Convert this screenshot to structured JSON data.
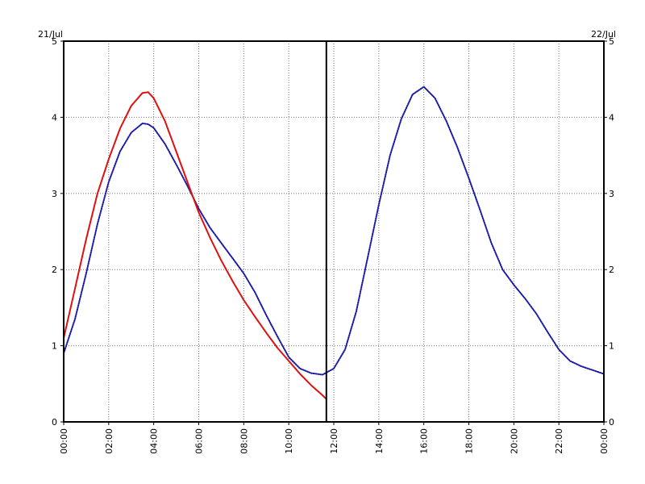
{
  "chart_data": {
    "type": "line",
    "title": "",
    "xlabel": "",
    "ylabel": "",
    "date_labels": {
      "left": "21/Jul",
      "right": "22/Jul"
    },
    "x_unit": "hours",
    "xlim": [
      0,
      24
    ],
    "ylim": [
      0,
      5
    ],
    "x_ticks": [
      0,
      2,
      4,
      6,
      8,
      10,
      12,
      14,
      16,
      18,
      20,
      22,
      24
    ],
    "x_tick_labels": [
      "00:00",
      "02:00",
      "04:00",
      "06:00",
      "08:00",
      "10:00",
      "12:00",
      "14:00",
      "16:00",
      "18:00",
      "20:00",
      "22:00",
      "00:00"
    ],
    "y_ticks": [
      0,
      1,
      2,
      3,
      4,
      5
    ],
    "y_tick_labels": [
      "0",
      "1",
      "2",
      "3",
      "4",
      "5"
    ],
    "grid": true,
    "current_time_marker": 11.67,
    "series": [
      {
        "color": "#1a1aa6",
        "style": "dotted",
        "x": [
          0.0,
          0.5,
          1.0,
          1.5,
          2.0,
          2.5,
          3.0,
          3.5,
          3.75,
          4.0,
          4.5,
          5.0,
          5.5,
          6.0,
          6.5,
          7.0,
          7.5,
          8.0,
          8.5,
          9.0,
          9.5,
          10.0,
          10.5,
          11.0,
          11.5,
          12.0,
          12.5,
          13.0,
          13.5,
          14.0,
          14.5,
          15.0,
          15.5,
          16.0,
          16.5,
          17.0,
          17.5,
          18.0,
          18.5,
          19.0,
          19.5,
          20.0,
          20.5,
          21.0,
          21.5,
          22.0,
          22.5,
          23.0,
          23.5,
          24.0
        ],
        "y": [
          0.9,
          1.35,
          1.95,
          2.6,
          3.15,
          3.55,
          3.8,
          3.92,
          3.91,
          3.86,
          3.65,
          3.38,
          3.1,
          2.8,
          2.55,
          2.35,
          2.15,
          1.95,
          1.7,
          1.4,
          1.12,
          0.85,
          0.7,
          0.64,
          0.62,
          0.7,
          0.95,
          1.45,
          2.15,
          2.85,
          3.5,
          3.98,
          4.3,
          4.4,
          4.25,
          3.95,
          3.6,
          3.2,
          2.78,
          2.35,
          2.0,
          1.8,
          1.62,
          1.42,
          1.18,
          0.95,
          0.8,
          0.73,
          0.68,
          0.63
        ]
      },
      {
        "color": "#e01010",
        "style": "solid",
        "x": [
          0.0,
          0.5,
          1.0,
          1.5,
          2.0,
          2.5,
          3.0,
          3.5,
          3.75,
          4.0,
          4.5,
          5.0,
          5.5,
          6.0,
          6.5,
          7.0,
          7.5,
          8.0,
          8.5,
          9.0,
          9.5,
          10.0,
          10.5,
          11.0,
          11.5,
          11.67
        ],
        "y": [
          1.1,
          1.75,
          2.4,
          3.0,
          3.45,
          3.85,
          4.15,
          4.32,
          4.33,
          4.25,
          3.95,
          3.55,
          3.15,
          2.75,
          2.42,
          2.12,
          1.85,
          1.6,
          1.38,
          1.17,
          0.97,
          0.8,
          0.63,
          0.48,
          0.35,
          0.3
        ]
      }
    ]
  }
}
